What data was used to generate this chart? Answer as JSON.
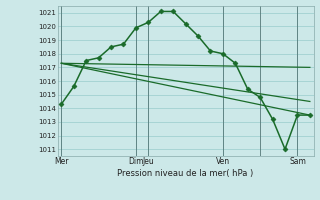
{
  "background_color": "#cce8e8",
  "grid_color": "#99cccc",
  "line_color": "#1a6b2a",
  "xlabel_text": "Pression niveau de la mer( hPa )",
  "ylim": [
    1010.5,
    1021.5
  ],
  "yticks": [
    1011,
    1012,
    1013,
    1014,
    1015,
    1016,
    1017,
    1018,
    1019,
    1020,
    1021
  ],
  "xlim": [
    -0.3,
    20.3
  ],
  "series": [
    {
      "x": [
        0,
        1,
        2,
        3,
        4,
        5,
        6,
        7,
        8,
        9,
        10,
        11,
        12,
        13,
        14,
        15,
        16,
        17,
        18,
        19,
        20
      ],
      "y": [
        1014.3,
        1015.6,
        1017.5,
        1017.7,
        1018.5,
        1018.7,
        1019.9,
        1020.3,
        1021.1,
        1021.1,
        1020.2,
        1019.3,
        1018.2,
        1018.0,
        1017.3,
        1015.4,
        1014.8,
        1013.2,
        1011.0,
        1013.5,
        1013.5
      ],
      "marker": "D",
      "markersize": 2.5,
      "linewidth": 1.1,
      "zorder": 3
    },
    {
      "x": [
        0,
        20
      ],
      "y": [
        1017.3,
        1017.0
      ],
      "marker": null,
      "linewidth": 0.9,
      "zorder": 2
    },
    {
      "x": [
        0,
        20
      ],
      "y": [
        1017.3,
        1014.5
      ],
      "marker": null,
      "linewidth": 0.9,
      "zorder": 2
    },
    {
      "x": [
        0,
        20
      ],
      "y": [
        1017.3,
        1013.5
      ],
      "marker": null,
      "linewidth": 0.9,
      "zorder": 2
    }
  ],
  "vlines": [
    {
      "x": 0,
      "label": "Mer"
    },
    {
      "x": 6,
      "label": "Dim"
    },
    {
      "x": 7,
      "label": "Jeu"
    },
    {
      "x": 13,
      "label": "Ven"
    },
    {
      "x": 16,
      "label": ""
    },
    {
      "x": 19,
      "label": "Sam"
    }
  ],
  "xtick_positions": [
    0,
    6,
    7,
    13,
    19
  ],
  "xtick_labels": [
    "Mer",
    "Dim",
    "Jeu",
    "Ven",
    "Sam"
  ]
}
